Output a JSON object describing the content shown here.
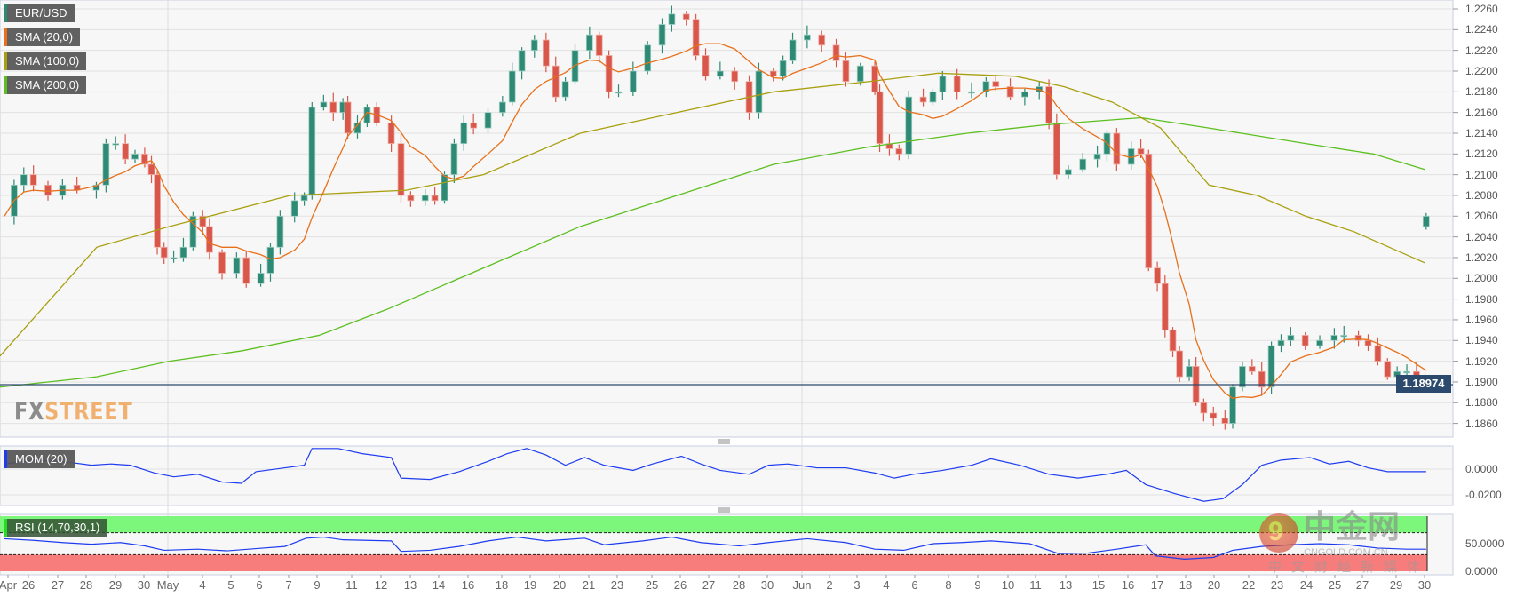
{
  "legend": {
    "symbol": {
      "label": "EUR/USD",
      "color": "#2e8a74"
    },
    "sma20": {
      "label": "SMA (20,0)",
      "color": "#e8701a"
    },
    "sma100": {
      "label": "SMA (100,0)",
      "color": "#a8a010"
    },
    "sma200": {
      "label": "SMA (200,0)",
      "color": "#5cbf1f"
    },
    "mom": {
      "label": "MOM (20)",
      "color": "#1e3cf0"
    },
    "rsi": {
      "label": "RSI (14,70,30,1)",
      "color": "#22dd22"
    }
  },
  "current_price": "1.18974",
  "logo": {
    "fx": "FX",
    "street": "STREET"
  },
  "watermark": {
    "brand": "中金网",
    "domain": "CNGOLD.COM.CN",
    "slogan": "中文财经新媒体"
  },
  "colors": {
    "up": "#2e8a74",
    "down": "#d9574a",
    "price_line": "#2c4a6e",
    "rsi_overbought": "#7cf77c",
    "rsi_oversold": "#f77c7c"
  },
  "chart_data": {
    "type": "candlestick",
    "ylim": [
      1.185,
      1.2265
    ],
    "y_ticks": [
      "1.2260",
      "1.2240",
      "1.2220",
      "1.2200",
      "1.2180",
      "1.2160",
      "1.2140",
      "1.2120",
      "1.2100",
      "1.2080",
      "1.2060",
      "1.2040",
      "1.2020",
      "1.2000",
      "1.1980",
      "1.1960",
      "1.1940",
      "1.1920",
      "1.1900",
      "1.1880",
      "1.1860"
    ],
    "x_ticks": [
      "Apr",
      "26",
      "27",
      "28",
      "29",
      "30",
      "May",
      "4",
      "5",
      "6",
      "7",
      "9",
      "11",
      "12",
      "13",
      "14",
      "16",
      "18",
      "19",
      "20",
      "21",
      "23",
      "25",
      "26",
      "27",
      "28",
      "30",
      "Jun",
      "2",
      "3",
      "4",
      "6",
      "8",
      "9",
      "10",
      "11",
      "13",
      "15",
      "16",
      "17",
      "18",
      "20",
      "22",
      "23",
      "24",
      "25",
      "27",
      "29",
      "30"
    ],
    "closes": [
      1.206,
      1.209,
      1.21,
      1.209,
      1.208,
      1.209,
      1.2085,
      1.209,
      1.213,
      1.213,
      1.2115,
      1.212,
      1.211,
      1.21,
      1.203,
      1.202,
      1.202,
      1.203,
      1.206,
      1.205,
      1.2025,
      1.2005,
      1.202,
      1.1995,
      1.2005,
      1.203,
      1.206,
      1.2075,
      1.208,
      1.2165,
      1.217,
      1.216,
      1.217,
      1.214,
      1.215,
      1.2165,
      1.215,
      1.213,
      1.208,
      1.2075,
      1.208,
      1.2075,
      1.21,
      1.213,
      1.215,
      1.2145,
      1.216,
      1.217,
      1.22,
      1.222,
      1.223,
      1.2205,
      1.2175,
      1.219,
      1.222,
      1.2235,
      1.2215,
      1.218,
      1.218,
      1.22,
      1.2225,
      1.2245,
      1.2255,
      1.225,
      1.2215,
      1.2195,
      1.22,
      1.219,
      1.216,
      1.22,
      1.2195,
      1.221,
      1.223,
      1.2235,
      1.2225,
      1.221,
      1.219,
      1.2205,
      1.218,
      1.213,
      1.2125,
      1.212,
      1.2175,
      1.217,
      1.218,
      1.2195,
      1.218,
      1.218,
      1.219,
      1.2185,
      1.2175,
      1.218,
      1.2185,
      1.215,
      1.21,
      1.2105,
      1.2115,
      1.212,
      1.214,
      1.211,
      1.2125,
      1.212,
      1.201,
      1.1995,
      1.195,
      1.193,
      1.1905,
      1.1915,
      1.188,
      1.187,
      1.1865,
      1.186,
      1.1895,
      1.1915,
      1.191,
      1.1895,
      1.1935,
      1.194,
      1.1945,
      1.1935,
      1.194,
      1.1945,
      1.1945,
      1.194,
      1.1935,
      1.192,
      1.1905,
      1.191,
      1.191,
      1.19,
      1.18974
    ],
    "sma100": [
      1.1925,
      1.203,
      1.205,
      1.208,
      1.2085,
      1.21,
      1.214,
      1.216,
      1.218,
      1.219,
      1.2198,
      1.2195,
      1.2185,
      1.217,
      1.2145,
      1.209,
      1.208,
      1.206,
      1.2045,
      1.2015
    ],
    "sma200": [
      1.1895,
      1.1905,
      1.192,
      1.193,
      1.1945,
      1.197,
      1.201,
      1.205,
      1.208,
      1.211,
      1.2127,
      1.214,
      1.2148,
      1.2155,
      1.2145,
      1.213,
      1.212,
      1.2105
    ],
    "mom": {
      "ticks": [
        "0.0000",
        "-0.0200"
      ],
      "values": [
        0.004,
        0.007,
        0.006,
        0.003,
        0.004,
        0.003,
        -0.003,
        -0.006,
        -0.004,
        -0.01,
        -0.011,
        -0.002,
        0.001,
        0.003,
        0.016,
        0.016,
        0.012,
        0.009,
        -0.007,
        -0.008,
        -0.002,
        0.006,
        0.012,
        0.016,
        0.011,
        0.003,
        0.009,
        0.003,
        -0.001,
        0.004,
        0.01,
        0.004,
        -0.001,
        -0.004,
        0.003,
        0.004,
        0.001,
        0.001,
        -0.003,
        -0.007,
        -0.004,
        -0.001,
        0.003,
        0.008,
        0.003,
        -0.004,
        -0.007,
        -0.004,
        -0.001,
        -0.012,
        -0.019,
        -0.025,
        -0.023,
        -0.012,
        0.003,
        0.007,
        0.009,
        0.004,
        0.006,
        0.001,
        -0.002,
        -0.002,
        -0.002
      ]
    },
    "rsi": {
      "ticks": [
        "50.0000",
        "0.0000"
      ],
      "overbought": 70,
      "oversold": 30,
      "values": [
        59,
        56,
        52,
        49,
        52,
        46,
        38,
        40,
        37,
        41,
        45,
        60,
        62,
        57,
        55,
        36,
        38,
        45,
        55,
        62,
        55,
        60,
        48,
        55,
        62,
        52,
        46,
        52,
        59,
        52,
        40,
        38,
        50,
        52,
        55,
        50,
        32,
        33,
        40,
        48,
        28,
        22,
        25,
        38,
        45,
        48,
        50,
        48,
        42,
        40,
        40
      ]
    }
  }
}
